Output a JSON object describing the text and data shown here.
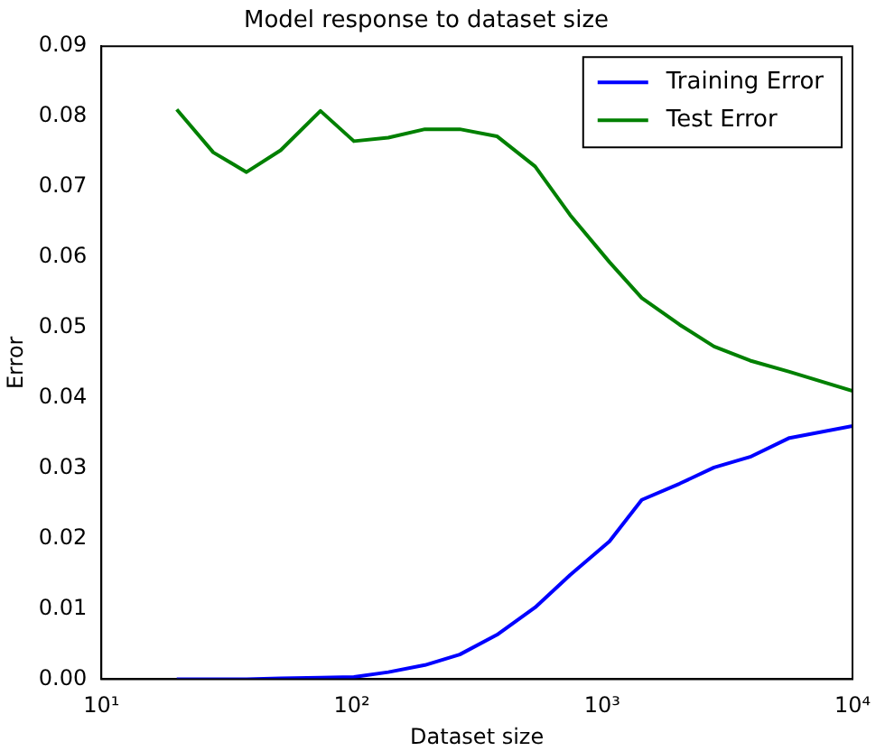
{
  "chart_data": {
    "type": "line",
    "title": "Model response to dataset size",
    "xlabel": "Dataset size",
    "ylabel": "Error",
    "x": [
      20,
      28,
      38,
      52,
      75,
      102,
      140,
      196,
      270,
      380,
      540,
      745,
      1070,
      1440,
      2040,
      2800,
      3900,
      5600,
      10000
    ],
    "series": [
      {
        "name": "Training Error",
        "color": "#0000ff",
        "values": [
          0,
          0,
          0,
          0.0001,
          0.0002,
          0.0003,
          0.001,
          0.002,
          0.0035,
          0.0063,
          0.0102,
          0.0148,
          0.0196,
          0.0255,
          0.0278,
          0.0301,
          0.0316,
          0.0343,
          0.036
        ]
      },
      {
        "name": "Test Error",
        "color": "#008000",
        "values": [
          0.081,
          0.0749,
          0.0721,
          0.0752,
          0.0808,
          0.0765,
          0.077,
          0.0782,
          0.0782,
          0.0772,
          0.0729,
          0.066,
          0.0593,
          0.0542,
          0.0504,
          0.0473,
          0.0453,
          0.0437,
          0.041
        ]
      }
    ],
    "log": "x",
    "xlim": [
      10,
      10000
    ],
    "xticks": [
      {
        "value": 10,
        "label": "10¹"
      },
      {
        "value": 100,
        "label": "10²"
      },
      {
        "value": 1000,
        "label": "10³"
      },
      {
        "value": 10000,
        "label": "10⁴"
      }
    ],
    "ylim": [
      0,
      0.09
    ],
    "yticks": [
      {
        "value": 0,
        "label": "0.00"
      },
      {
        "value": 0.01,
        "label": "0.01"
      },
      {
        "value": 0.02,
        "label": "0.02"
      },
      {
        "value": 0.03,
        "label": "0.03"
      },
      {
        "value": 0.04,
        "label": "0.04"
      },
      {
        "value": 0.05,
        "label": "0.05"
      },
      {
        "value": 0.06,
        "label": "0.06"
      },
      {
        "value": 0.07,
        "label": "0.07"
      },
      {
        "value": 0.08,
        "label": "0.08"
      },
      {
        "value": 0.09,
        "label": "0.09"
      }
    ],
    "grid": false,
    "legend": "top right",
    "marker": "none",
    "line_style": "solid"
  }
}
